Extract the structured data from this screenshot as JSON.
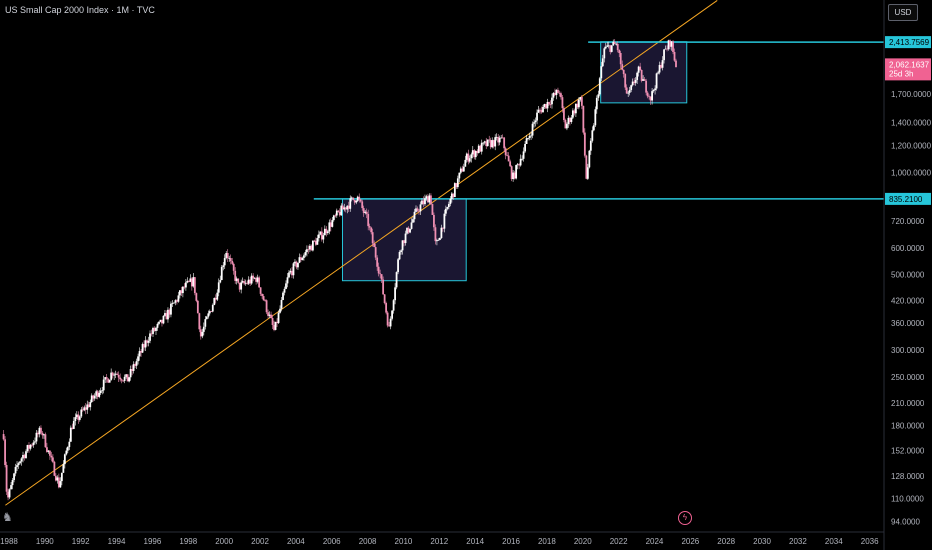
{
  "header": {
    "title": "US Small Cap 2000 Index · 1M · TVC",
    "currency": "USD"
  },
  "colors": {
    "background": "#000000",
    "up_candle": "#ffffff",
    "down_candle": "#ef8fb3",
    "level_line": "#26c6da",
    "trend_line": "#f5a623",
    "box_fill": "#1e1a3a",
    "price_tag": "#f06292"
  },
  "chart_data": {
    "type": "candlestick",
    "scale": "log",
    "x_ticks": [
      "1988",
      "1990",
      "1992",
      "1994",
      "1996",
      "1998",
      "2000",
      "2002",
      "2004",
      "2006",
      "2008",
      "2010",
      "2012",
      "2014",
      "2016",
      "2018",
      "2020",
      "2022",
      "2024",
      "2026",
      "2028",
      "2030",
      "2032",
      "2034",
      "2036"
    ],
    "y_ticks": [
      "94.0000",
      "110.0000",
      "128.0000",
      "152.0000",
      "180.0000",
      "210.0000",
      "250.0000",
      "300.0000",
      "360.0000",
      "420.0000",
      "500.0000",
      "600.0000",
      "720.0000",
      "1,000.0000",
      "1,200.0000",
      "1,400.0000",
      "1,700.0000"
    ],
    "ylim": [
      90,
      3000
    ],
    "xlim": [
      1987.5,
      2036.8
    ],
    "series": [
      {
        "approx_path": [
          [
            1987.7,
            170
          ],
          [
            1987.9,
            108
          ],
          [
            1988.5,
            140
          ],
          [
            1989.8,
            175
          ],
          [
            1990.8,
            120
          ],
          [
            1991.5,
            180
          ],
          [
            1992.5,
            210
          ],
          [
            1993.8,
            260
          ],
          [
            1994.6,
            245
          ],
          [
            1995.8,
            330
          ],
          [
            1996.5,
            360
          ],
          [
            1997.8,
            460
          ],
          [
            1998.3,
            480
          ],
          [
            1998.7,
            330
          ],
          [
            1999.5,
            430
          ],
          [
            2000.1,
            590
          ],
          [
            2000.8,
            460
          ],
          [
            2001.8,
            490
          ],
          [
            2002.8,
            340
          ],
          [
            2003.6,
            500
          ],
          [
            2004.5,
            580
          ],
          [
            2005.5,
            660
          ],
          [
            2006.4,
            760
          ],
          [
            2007.4,
            850
          ],
          [
            2008.0,
            720
          ],
          [
            2008.7,
            500
          ],
          [
            2009.2,
            345
          ],
          [
            2009.8,
            600
          ],
          [
            2010.8,
            780
          ],
          [
            2011.5,
            860
          ],
          [
            2011.8,
            600
          ],
          [
            2012.5,
            800
          ],
          [
            2013.5,
            1100
          ],
          [
            2014.5,
            1200
          ],
          [
            2015.5,
            1250
          ],
          [
            2016.1,
            960
          ],
          [
            2017.5,
            1500
          ],
          [
            2018.7,
            1740
          ],
          [
            2019.0,
            1350
          ],
          [
            2019.9,
            1670
          ],
          [
            2020.2,
            965
          ],
          [
            2020.9,
            1800
          ],
          [
            2021.2,
            2300
          ],
          [
            2021.9,
            2380
          ],
          [
            2022.5,
            1650
          ],
          [
            2023.1,
            1990
          ],
          [
            2023.8,
            1650
          ],
          [
            2024.5,
            2220
          ],
          [
            2024.9,
            2440
          ],
          [
            2025.2,
            2062
          ]
        ]
      }
    ],
    "horizontal_levels": [
      {
        "value": 2413.7569,
        "label": "2,413.7569"
      },
      {
        "value": 835.21,
        "label": "835.2100"
      }
    ],
    "current_price": {
      "label": "2,062.1637",
      "countdown": "25d 3h",
      "value": 2062.1637
    },
    "boxes": [
      {
        "x0": 2006.6,
        "x1": 2013.5,
        "y0": 480,
        "y1": 835
      },
      {
        "x0": 2021.0,
        "x1": 2025.8,
        "y0": 1600,
        "y1": 2420
      }
    ],
    "trend_line": {
      "x0": 1987.8,
      "y0": 105,
      "x1": 2027.5,
      "y1": 3200
    }
  }
}
